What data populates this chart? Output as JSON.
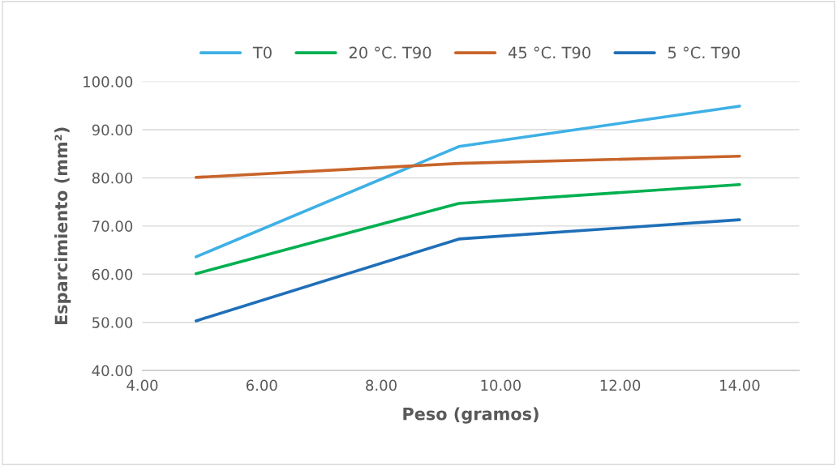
{
  "chart_data": {
    "type": "line",
    "xlabel": "Peso (gramos)",
    "ylabel": "Esparcimiento (mm²)",
    "x": [
      4.9,
      9.3,
      14.0
    ],
    "series": [
      {
        "name": "T0",
        "color": "#3eb0e6",
        "values": [
          63.6,
          86.5,
          94.9
        ]
      },
      {
        "name": "20 °C. T90",
        "color": "#00b050",
        "values": [
          60.1,
          74.7,
          78.6
        ]
      },
      {
        "name": "45 °C. T90",
        "color": "#c8642a",
        "values": [
          80.1,
          83.0,
          84.5
        ]
      },
      {
        "name": "5 °C. T90",
        "color": "#1f6fb8",
        "values": [
          50.3,
          67.3,
          71.3
        ]
      }
    ],
    "xlim": [
      4,
      15
    ],
    "xticks": [
      {
        "value": 4,
        "label": "4.00"
      },
      {
        "value": 6,
        "label": "6.00"
      },
      {
        "value": 8,
        "label": "8.00"
      },
      {
        "value": 10,
        "label": "10.00"
      },
      {
        "value": 12,
        "label": "12.00"
      },
      {
        "value": 14,
        "label": "14.00"
      }
    ],
    "ylim": [
      40,
      100
    ],
    "yticks": [
      {
        "value": 40,
        "label": "40.00"
      },
      {
        "value": 50,
        "label": "50.00"
      },
      {
        "value": 60,
        "label": "60.00"
      },
      {
        "value": 70,
        "label": "70.00"
      },
      {
        "value": 80,
        "label": "80.00"
      },
      {
        "value": 90,
        "label": "90.00"
      },
      {
        "value": 100,
        "label": "100.00"
      }
    ],
    "grid": "y",
    "legend": "top",
    "marker": "none",
    "line_style": "solid"
  }
}
